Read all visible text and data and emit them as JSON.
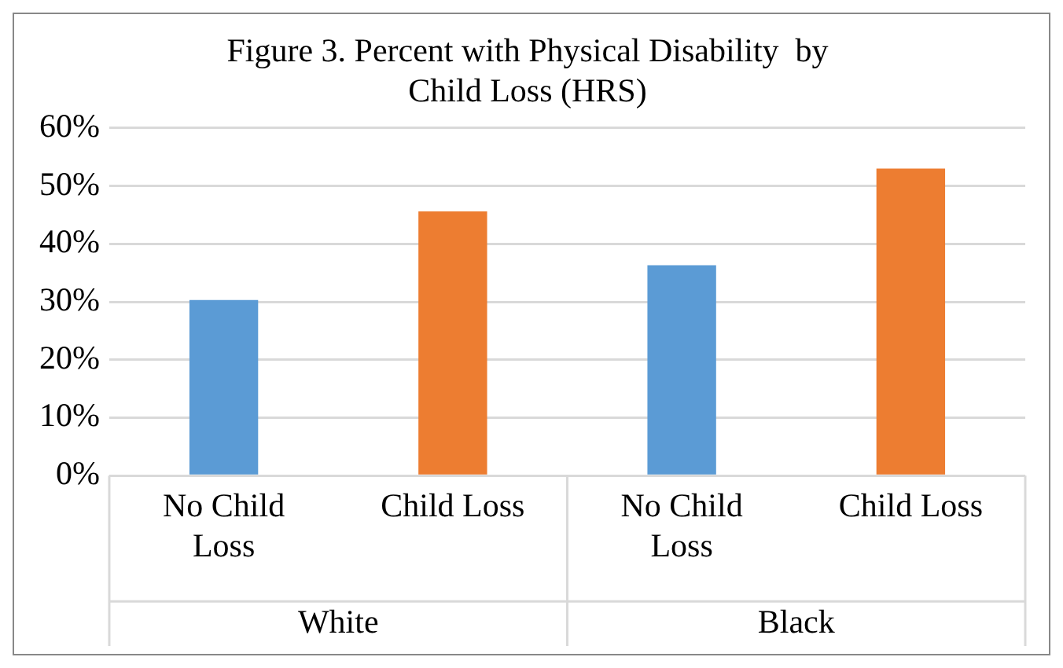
{
  "chart_data": {
    "type": "bar",
    "title": "Figure 3. Percent with Physical Disability  by Child Loss (HRS)",
    "categories": [
      "No Child Loss",
      "Child Loss",
      "No Child Loss",
      "Child Loss"
    ],
    "values": [
      30.3,
      45.6,
      36.3,
      53
    ],
    "colors": [
      "#5b9bd5",
      "#ed7d31",
      "#5b9bd5",
      "#ed7d31"
    ],
    "ylim": [
      0,
      60
    ],
    "yticks": [
      {
        "value": 0,
        "label": "0%"
      },
      {
        "value": 10,
        "label": "10%"
      },
      {
        "value": 20,
        "label": "20%"
      },
      {
        "value": 30,
        "label": "30%"
      },
      {
        "value": 40,
        "label": "40%"
      },
      {
        "value": 50,
        "label": "50%"
      },
      {
        "value": 60,
        "label": "60%"
      }
    ],
    "grid": "y",
    "annotations": [
      "White",
      "Black"
    ]
  }
}
